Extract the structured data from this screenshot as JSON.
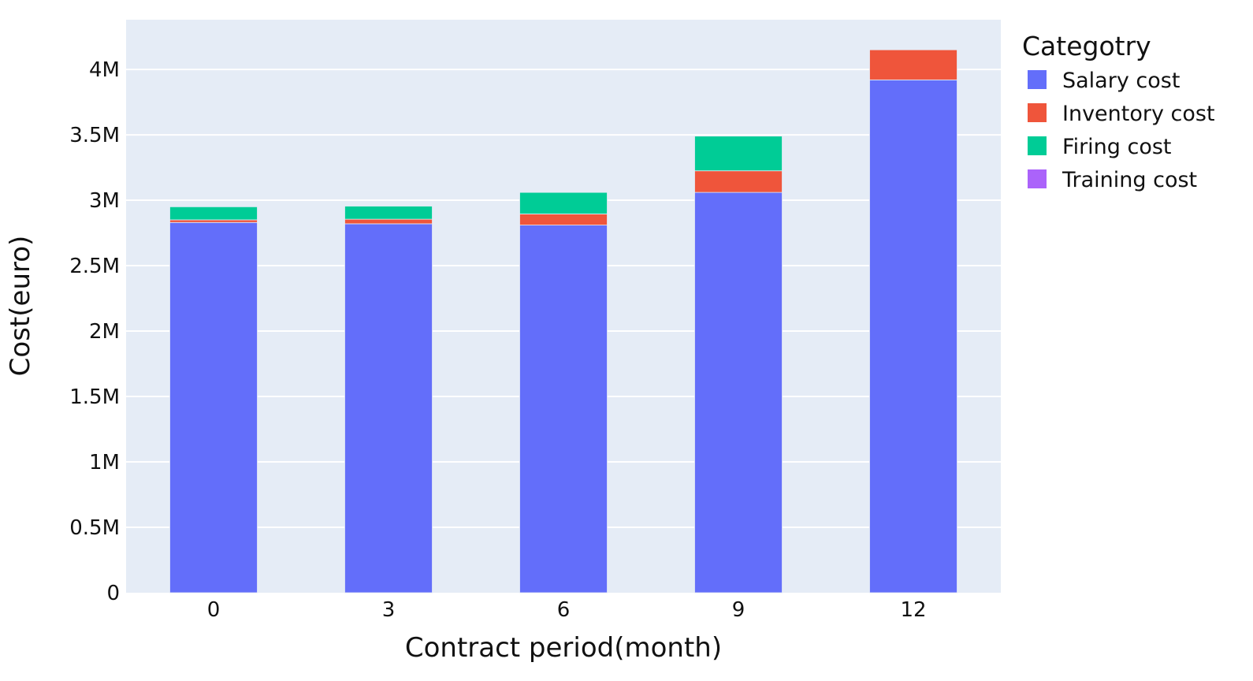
{
  "chart_data": {
    "type": "bar",
    "stacked": true,
    "xlabel": "Contract period(month)",
    "ylabel": "Cost(euro)",
    "categories": [
      "0",
      "3",
      "6",
      "9",
      "12"
    ],
    "ylim": [
      0,
      4380000
    ],
    "yticks": [
      {
        "value": 0,
        "label": "0"
      },
      {
        "value": 500000,
        "label": "0.5M"
      },
      {
        "value": 1000000,
        "label": "1M"
      },
      {
        "value": 1500000,
        "label": "1.5M"
      },
      {
        "value": 2000000,
        "label": "2M"
      },
      {
        "value": 2500000,
        "label": "2.5M"
      },
      {
        "value": 3000000,
        "label": "3M"
      },
      {
        "value": 3500000,
        "label": "3.5M"
      },
      {
        "value": 4000000,
        "label": "4M"
      }
    ],
    "grid": true,
    "legend": {
      "title": "Categotry",
      "placement": "top-right"
    },
    "series": [
      {
        "name": "Salary cost",
        "color": "#636efa",
        "values": [
          2830000,
          2820000,
          2810000,
          3060000,
          3920000
        ]
      },
      {
        "name": "Inventory cost",
        "color": "#ef553b",
        "values": [
          20000,
          35000,
          85000,
          165000,
          230000
        ]
      },
      {
        "name": "Firing cost",
        "color": "#00cc96",
        "values": [
          100000,
          100000,
          165000,
          265000,
          0
        ]
      },
      {
        "name": "Training cost",
        "color": "#ab63fa",
        "values": [
          0,
          0,
          0,
          0,
          0
        ]
      }
    ]
  }
}
